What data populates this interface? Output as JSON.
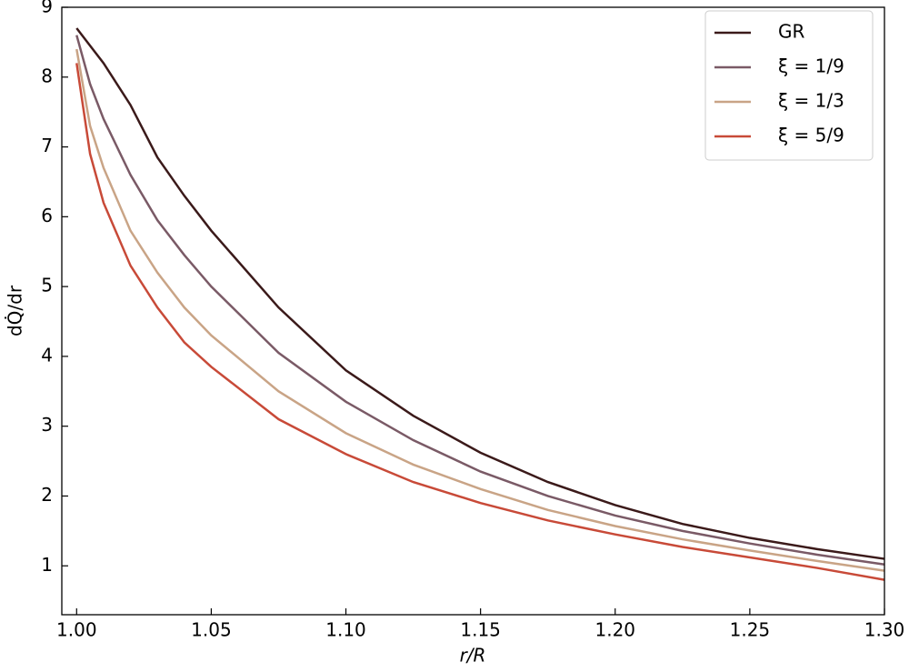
{
  "chart_data": {
    "type": "line",
    "xlabel": "r/R",
    "ylabel": "dQ̇/dr",
    "x": [
      1.0,
      1.005,
      1.01,
      1.02,
      1.03,
      1.04,
      1.05,
      1.075,
      1.1,
      1.125,
      1.15,
      1.175,
      1.2,
      1.225,
      1.25,
      1.275,
      1.3
    ],
    "series": [
      {
        "name": "GR",
        "color": "#3b1a1a",
        "values": [
          8.7,
          8.45,
          8.2,
          7.6,
          6.85,
          6.3,
          5.8,
          4.7,
          3.8,
          3.15,
          2.62,
          2.2,
          1.87,
          1.6,
          1.4,
          1.24,
          1.1
        ]
      },
      {
        "name": "ξ = 1/9",
        "color": "#7a5a66",
        "values": [
          8.6,
          7.9,
          7.4,
          6.6,
          5.95,
          5.45,
          5.0,
          4.05,
          3.35,
          2.8,
          2.35,
          2.0,
          1.72,
          1.5,
          1.32,
          1.16,
          1.02
        ]
      },
      {
        "name": "ξ = 1/3",
        "color": "#c9a486",
        "values": [
          8.4,
          7.3,
          6.7,
          5.8,
          5.2,
          4.7,
          4.3,
          3.5,
          2.9,
          2.45,
          2.1,
          1.8,
          1.57,
          1.38,
          1.22,
          1.07,
          0.93
        ]
      },
      {
        "name": "ξ = 5/9",
        "color": "#c84a38",
        "values": [
          8.2,
          6.9,
          6.2,
          5.3,
          4.7,
          4.2,
          3.85,
          3.1,
          2.6,
          2.2,
          1.9,
          1.65,
          1.45,
          1.27,
          1.12,
          0.97,
          0.8
        ]
      }
    ],
    "xlim": [
      0.9945,
      1.3
    ],
    "ylim": [
      0.3,
      9
    ],
    "xticks": [
      {
        "value": 1.0,
        "label": "1.00"
      },
      {
        "value": 1.05,
        "label": "1.05"
      },
      {
        "value": 1.1,
        "label": "1.10"
      },
      {
        "value": 1.15,
        "label": "1.15"
      },
      {
        "value": 1.2,
        "label": "1.20"
      },
      {
        "value": 1.25,
        "label": "1.25"
      },
      {
        "value": 1.3,
        "label": "1.30"
      }
    ],
    "yticks": [
      1,
      2,
      3,
      4,
      5,
      6,
      7,
      8,
      9
    ],
    "legend": "upper right",
    "grid": false
  }
}
